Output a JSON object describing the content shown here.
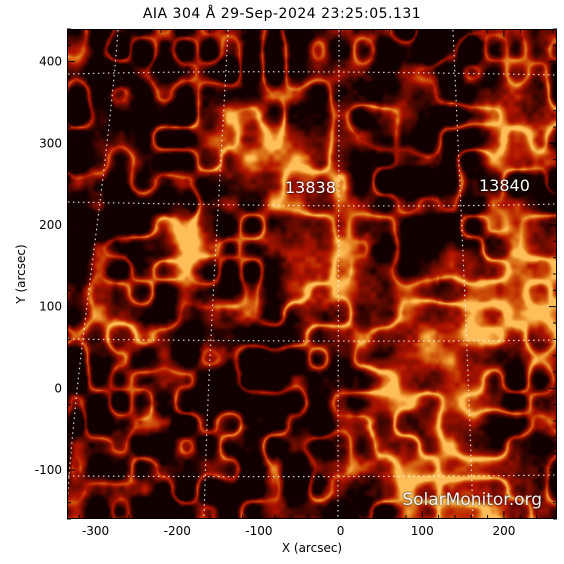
{
  "title": "AIA 304 Å 29-Sep-2024 23:25:05.131",
  "axes": {
    "xlabel": "X (arcsec)",
    "ylabel": "Y (arcsec)",
    "xlim": [
      -335,
      265
    ],
    "ylim": [
      -160,
      440
    ],
    "x_ticks": [
      "-300",
      "-200",
      "-100",
      "0",
      "100",
      "200"
    ],
    "y_ticks": [
      "-100",
      "0",
      "100",
      "200",
      "300",
      "400"
    ]
  },
  "active_regions": [
    {
      "label": "13838"
    },
    {
      "label": "13840"
    }
  ],
  "watermark": "SolarMonitor.org",
  "colors": {
    "background": "#120000",
    "grid": "#ffffff",
    "emission_dark": "#3a0000",
    "emission_mid": "#b22a00",
    "emission_bright": "#ffb23a"
  }
}
